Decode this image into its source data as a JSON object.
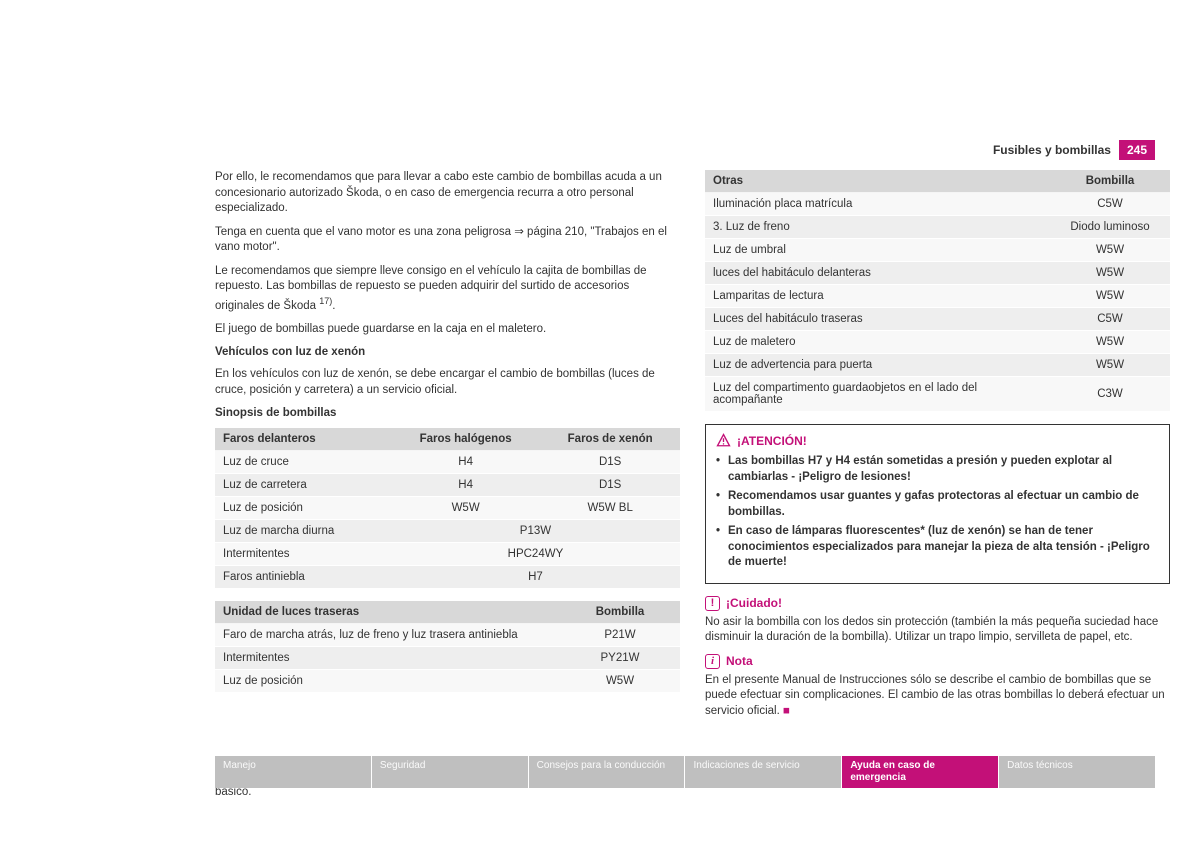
{
  "header": {
    "section_title": "Fusibles y bombillas",
    "page_number": "245"
  },
  "left": {
    "p1": "Por ello, le recomendamos que para llevar a cabo este cambio de bombillas acuda a un concesionario autorizado Škoda, o en caso de emergencia recurra a otro personal especializado.",
    "p2a": "Tenga en cuenta que el vano motor es una zona peligrosa ",
    "p2b": " página 210, \"Trabajos en el vano motor\".",
    "p3a": "Le recomendamos que siempre lleve consigo en el vehículo la cajita de bombillas de repuesto. Las bombillas de repuesto se pueden adquirir del surtido de accesorios originales de Škoda ",
    "p3fn": "17)",
    "p3b": ".",
    "p4": "El juego de bombillas puede guardarse en la caja en el maletero.",
    "h1": "Vehículos con luz de xenón",
    "p5": "En los vehículos con luz de xenón, se debe encargar el cambio de bombillas (luces de cruce, posición y carretera) a un servicio oficial.",
    "h2": "Sinopsis de bombillas",
    "table1": {
      "headers": [
        "Faros delanteros",
        "Faros halógenos",
        "Faros de xenón"
      ],
      "rows": [
        [
          "Luz de cruce",
          "H4",
          "D1S"
        ],
        [
          "Luz de carretera",
          "H4",
          "D1S"
        ],
        [
          "Luz de posición",
          "W5W",
          "W5W BL"
        ],
        [
          "Luz de marcha diurna",
          "P13W",
          ""
        ],
        [
          "Intermitentes",
          "HPC24WY",
          ""
        ],
        [
          "Faros antiniebla",
          "H7",
          ""
        ]
      ]
    },
    "table2": {
      "headers": [
        "Unidad de luces traseras",
        "Bombilla"
      ],
      "rows": [
        [
          "Faro de marcha atrás, luz de freno y luz trasera antiniebla",
          "P21W"
        ],
        [
          "Intermitentes",
          "PY21W"
        ],
        [
          "Luz de posición",
          "W5W"
        ]
      ]
    },
    "footnote_num": "17)",
    "footnote_text": "En algunos países, la caja de bombillas de repuesto forma parte del equipamiento básico."
  },
  "right": {
    "table3": {
      "headers": [
        "Otras",
        "Bombilla"
      ],
      "rows": [
        [
          "Iluminación placa matrícula",
          "C5W"
        ],
        [
          "3. Luz de freno",
          "Diodo luminoso"
        ],
        [
          "Luz de umbral",
          "W5W"
        ],
        [
          "luces del habitáculo delanteras",
          "W5W"
        ],
        [
          "Lamparitas de lectura",
          "W5W"
        ],
        [
          "Luces del habitáculo traseras",
          "C5W"
        ],
        [
          "Luz de maletero",
          "W5W"
        ],
        [
          "Luz de advertencia para puerta",
          "W5W"
        ],
        [
          "Luz del compartimento guardaobjetos en el lado del acompañante",
          "C3W"
        ]
      ]
    },
    "warning": {
      "title": "¡ATENCIÓN!",
      "items": [
        "Las bombillas H7 y H4 están sometidas a presión y pueden explotar al cambiarlas - ¡Peligro de lesiones!",
        "Recomendamos usar guantes y gafas protectoras al efectuar un cambio de bombillas.",
        "En caso de lámparas fluorescentes* (luz de xenón) se han de tener conocimientos especializados para manejar la pieza de alta tensión - ¡Peligro de muerte!"
      ]
    },
    "caution": {
      "title": "¡Cuidado!",
      "text": "No asir la bombilla con los dedos sin protección (también la más pequeña suciedad hace disminuir la duración de la bombilla). Utilizar un trapo limpio, servilleta de papel, etc."
    },
    "note": {
      "title": "Nota",
      "text": "En el presente Manual de Instrucciones sólo se describe el cambio de bombillas que se puede efectuar sin complicaciones. El cambio de las otras bombillas lo deberá efectuar un servicio oficial."
    }
  },
  "tabs": [
    {
      "label": "Manejo",
      "active": false
    },
    {
      "label": "Seguridad",
      "active": false
    },
    {
      "label": "Consejos para la conducción",
      "active": false
    },
    {
      "label": "Indicaciones de servicio",
      "active": false
    },
    {
      "label": "Ayuda en caso de emergencia",
      "active": true
    },
    {
      "label": "Datos técnicos",
      "active": false
    }
  ],
  "colors": {
    "accent": "#c31078",
    "tab_inactive": "#bfbfbf",
    "th_bg": "#d8d8d8",
    "row_alt": "#eeeeee"
  }
}
